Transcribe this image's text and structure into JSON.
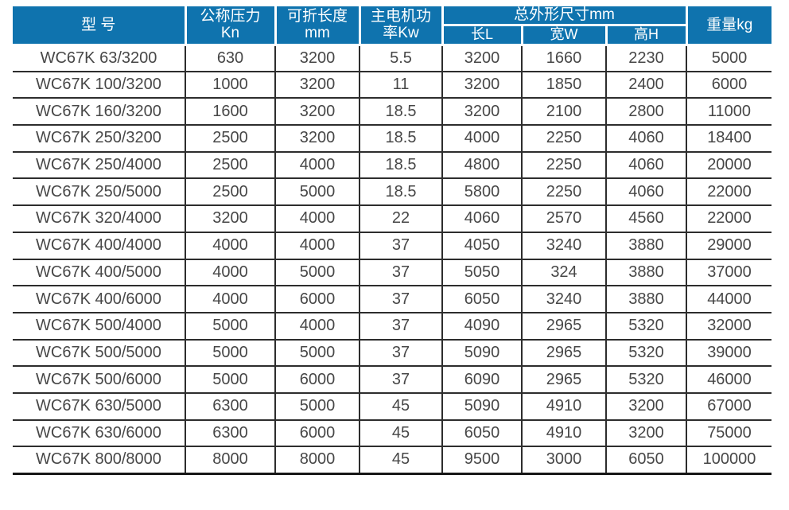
{
  "colors": {
    "header_bg": "#0f73ae",
    "header_text": "#ffffff",
    "body_text": "#474747",
    "grid_line": "#2d2d2d",
    "page_bg": "#ffffff"
  },
  "table": {
    "header": {
      "model": "型 号",
      "pressure_line1": "公称压力",
      "pressure_line2": "Kn",
      "length_line1": "可折长度",
      "length_line2": "mm",
      "power_line1": "主电机功",
      "power_line2": "率Kw",
      "dimensions_group": "总外形尺寸mm",
      "dim_length": "长L",
      "dim_width": "宽W",
      "dim_height": "高H",
      "weight": "重量kg"
    },
    "column_keys": [
      "model",
      "pressure-kn",
      "fold-length-mm",
      "motor-power-kw",
      "length-l",
      "width-w",
      "height-h",
      "weight-kg"
    ]
  },
  "chart_data": {
    "type": "table",
    "columns": [
      "型 号",
      "公称压力 Kn",
      "可折长度 mm",
      "主电机功率Kw",
      "长L",
      "宽W",
      "高H",
      "重量kg"
    ],
    "column_group": {
      "label": "总外形尺寸mm",
      "spans": [
        "长L",
        "宽W",
        "高H"
      ]
    },
    "rows": [
      [
        "WC67K 63/3200",
        "630",
        "3200",
        "5.5",
        "3200",
        "1660",
        "2230",
        "5000"
      ],
      [
        "WC67K 100/3200",
        "1000",
        "3200",
        "11",
        "3200",
        "1850",
        "2400",
        "6000"
      ],
      [
        "WC67K 160/3200",
        "1600",
        "3200",
        "18.5",
        "3200",
        "2100",
        "2800",
        "11000"
      ],
      [
        "WC67K 250/3200",
        "2500",
        "3200",
        "18.5",
        "4000",
        "2250",
        "4060",
        "18400"
      ],
      [
        "WC67K 250/4000",
        "2500",
        "4000",
        "18.5",
        "4800",
        "2250",
        "4060",
        "20000"
      ],
      [
        "WC67K 250/5000",
        "2500",
        "5000",
        "18.5",
        "5800",
        "2250",
        "4060",
        "22000"
      ],
      [
        "WC67K 320/4000",
        "3200",
        "4000",
        "22",
        "4060",
        "2570",
        "4560",
        "22000"
      ],
      [
        "WC67K 400/4000",
        "4000",
        "4000",
        "37",
        "4050",
        "3240",
        "3880",
        "29000"
      ],
      [
        "WC67K 400/5000",
        "4000",
        "5000",
        "37",
        "5050",
        "324",
        "3880",
        "37000"
      ],
      [
        "WC67K 400/6000",
        "4000",
        "6000",
        "37",
        "6050",
        "3240",
        "3880",
        "44000"
      ],
      [
        "WC67K 500/4000",
        "5000",
        "4000",
        "37",
        "4090",
        "2965",
        "5320",
        "32000"
      ],
      [
        "WC67K 500/5000",
        "5000",
        "5000",
        "37",
        "5090",
        "2965",
        "5320",
        "39000"
      ],
      [
        "WC67K 500/6000",
        "5000",
        "6000",
        "37",
        "6090",
        "2965",
        "5320",
        "46000"
      ],
      [
        "WC67K 630/5000",
        "6300",
        "5000",
        "45",
        "5090",
        "4910",
        "3200",
        "67000"
      ],
      [
        "WC67K 630/6000",
        "6300",
        "6000",
        "45",
        "6050",
        "4910",
        "3200",
        "75000"
      ],
      [
        "WC67K 800/8000",
        "8000",
        "8000",
        "45",
        "9500",
        "3000",
        "6050",
        "100000"
      ]
    ]
  }
}
